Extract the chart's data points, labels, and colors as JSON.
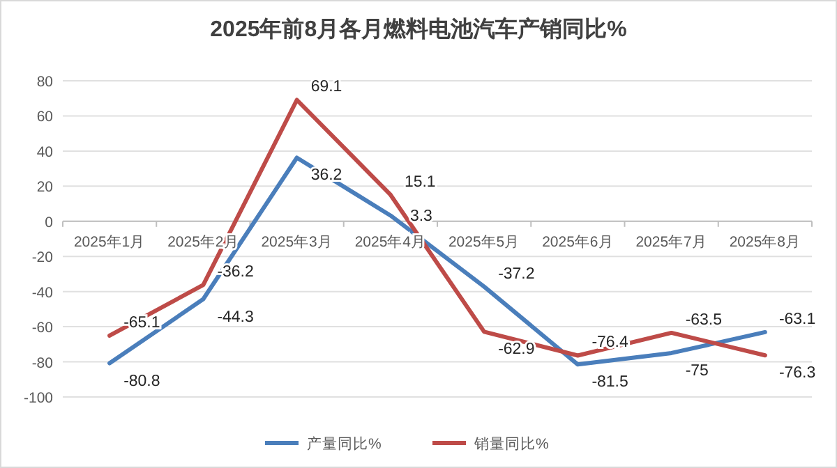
{
  "chart_data": {
    "type": "line",
    "title": "2025年前8月各月燃料电池汽车产销同比%",
    "categories": [
      "2025年1月",
      "2025年2月",
      "2025年3月",
      "2025年4月",
      "2025年5月",
      "2025年6月",
      "2025年7月",
      "2025年8月"
    ],
    "series": [
      {
        "name": "产量同比%",
        "color": "#4a7ebb",
        "values": [
          -80.8,
          -44.3,
          36.2,
          3.3,
          -37.2,
          -81.5,
          -75,
          -63.1
        ]
      },
      {
        "name": "销量同比%",
        "color": "#be4b48",
        "values": [
          -65.1,
          -36.2,
          69.1,
          15.1,
          -62.9,
          -76.4,
          -63.5,
          -76.3
        ]
      }
    ],
    "ylim": [
      -100,
      80
    ],
    "yticks": [
      -100,
      -80,
      -60,
      -40,
      -20,
      0,
      20,
      40,
      60,
      80
    ],
    "grid": "y",
    "legend": "bottom",
    "data_labels": true,
    "marker": "none",
    "line_style": "solid"
  }
}
